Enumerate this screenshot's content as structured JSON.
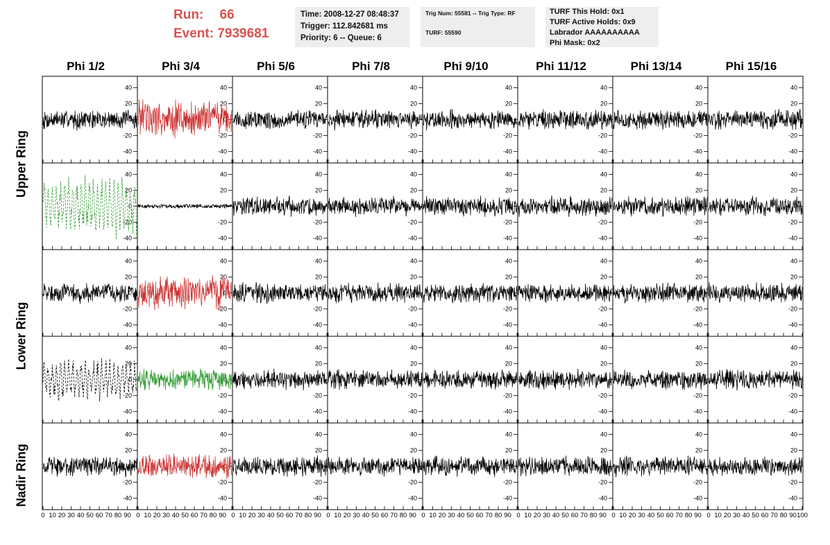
{
  "header": {
    "run_label": "Run:",
    "run_value": "66",
    "event_label": "Event:",
    "event_value": "7939681",
    "time": "Time: 2008-12-27 08:48:37",
    "trigger": "Trigger: 112.842681 ms",
    "priority": "Priority: 6 -- Queue: 6",
    "trig_num": "Trig Num: 55581 -- Trig Type: RF",
    "turf": "TURF: 55590",
    "turf_this_hold": "TURF This Hold: 0x1",
    "turf_active_holds": "TURF Active Holds: 0x9",
    "labrador": "Labrador AAAAAAAAAA",
    "phi_mask": "Phi Mask: 0x2"
  },
  "columns": [
    "Phi 1/2",
    "Phi 3/4",
    "Phi 5/6",
    "Phi 7/8",
    "Phi 9/10",
    "Phi 11/12",
    "Phi 13/14",
    "Phi 15/16"
  ],
  "ring_labels": [
    "Upper Ring",
    "Lower Ring",
    "Nadir Ring"
  ],
  "chart_data": {
    "type": "line",
    "grid": false,
    "xlim": [
      0,
      100
    ],
    "ylim": [
      -50,
      50
    ],
    "x_ticks": [
      0,
      10,
      20,
      30,
      40,
      50,
      60,
      70,
      80,
      90,
      100
    ],
    "x_tick_labels": [
      "0",
      "10",
      "20",
      "30",
      "40",
      "50",
      "60",
      "70",
      "80",
      "90",
      "100"
    ],
    "y_ticks": [
      -40,
      -20,
      0,
      20,
      40
    ],
    "y_tick_labels": [
      "-40",
      "-20",
      "0",
      "20",
      "40"
    ],
    "panel_rows": 5,
    "panel_cols": 8,
    "highlighted_panels": [
      {
        "row": 0,
        "col": 1,
        "color": "#cc3333",
        "style": "solid",
        "amplitude": 28
      },
      {
        "row": 1,
        "col": 0,
        "color": "#2e9a2e",
        "style": "dashed",
        "amplitude": 32
      },
      {
        "row": 1,
        "col": 1,
        "color": "#000000",
        "style": "solid",
        "amplitude": 3
      },
      {
        "row": 2,
        "col": 1,
        "color": "#cc3333",
        "style": "solid",
        "amplitude": 24
      },
      {
        "row": 3,
        "col": 0,
        "color": "#000000",
        "style": "dashed",
        "amplitude": 22
      },
      {
        "row": 3,
        "col": 1,
        "color": "#2e9a2e",
        "style": "solid",
        "amplitude": 15
      },
      {
        "row": 4,
        "col": 1,
        "color": "#cc3333",
        "style": "solid",
        "amplitude": 17
      }
    ],
    "default_panel": {
      "color": "#000000",
      "style": "solid",
      "amplitude": 14
    }
  }
}
